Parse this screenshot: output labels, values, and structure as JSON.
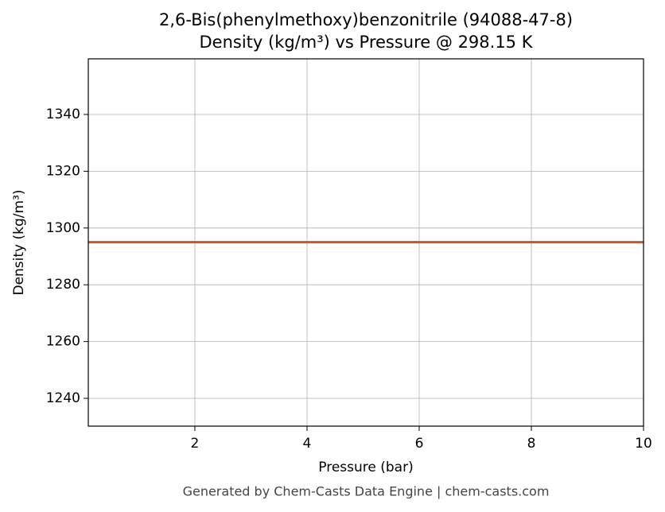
{
  "chart_data": {
    "type": "line",
    "title": "2,6-Bis(phenylmethoxy)benzonitrile (94088-47-8)",
    "subtitle": "Density (kg/m³) vs Pressure @ 298.15 K",
    "x_label": "Pressure (bar)",
    "y_label": "Density (kg/m³)",
    "x": [
      0.1,
      10
    ],
    "series": [
      {
        "name": "Density",
        "color": "#cc5529",
        "values": [
          1295,
          1295
        ]
      }
    ],
    "xlim": [
      0.1,
      10
    ],
    "xticks": [
      2,
      4,
      6,
      8,
      10
    ],
    "ylim": [
      1230.2,
      1359.6
    ],
    "yticks": [
      1240,
      1260,
      1280,
      1300,
      1320,
      1340
    ],
    "grid": true,
    "footer": "Generated by Chem-Casts Data Engine | chem-casts.com"
  }
}
